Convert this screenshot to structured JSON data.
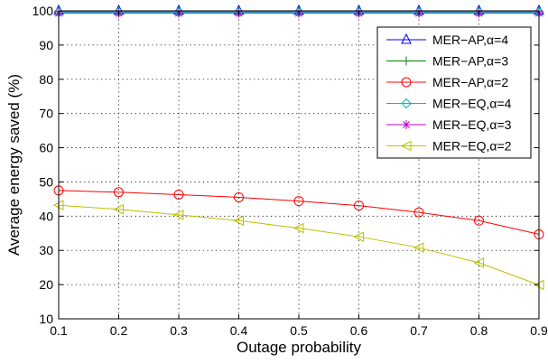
{
  "chart_data": {
    "type": "line",
    "title": "",
    "xlabel": "Outage probability",
    "ylabel": "Average energy saved (%)",
    "xlim": [
      0.1,
      0.9
    ],
    "ylim": [
      10,
      100
    ],
    "xticks": [
      0.1,
      0.2,
      0.3,
      0.4,
      0.5,
      0.6,
      0.7,
      0.8,
      0.9
    ],
    "yticks": [
      10,
      20,
      30,
      40,
      50,
      60,
      70,
      80,
      90,
      100
    ],
    "grid": true,
    "legend_position": "top-right",
    "x": [
      0.1,
      0.2,
      0.3,
      0.4,
      0.5,
      0.6,
      0.7,
      0.8,
      0.9
    ],
    "series": [
      {
        "name": "MER−AP,α=4",
        "color": "#0000ff",
        "marker": "triangle-up",
        "values": [
          100,
          100,
          100,
          100,
          100,
          100,
          100,
          100,
          100
        ]
      },
      {
        "name": "MER−AP,α=3",
        "color": "#008000",
        "marker": "plus",
        "values": [
          99.9,
          99.9,
          99.9,
          99.9,
          99.9,
          99.9,
          99.9,
          99.9,
          99.9
        ]
      },
      {
        "name": "MER−AP,α=2",
        "color": "#ff0000",
        "marker": "circle",
        "values": [
          47.5,
          47.0,
          46.3,
          45.5,
          44.4,
          43.1,
          41.1,
          38.7,
          34.7
        ]
      },
      {
        "name": "MER−EQ,α=4",
        "color": "#00bfbf",
        "marker": "diamond",
        "values": [
          99.6,
          99.6,
          99.6,
          99.6,
          99.6,
          99.6,
          99.6,
          99.6,
          99.6
        ]
      },
      {
        "name": "MER−EQ,α=3",
        "color": "#bf00bf",
        "marker": "star",
        "values": [
          99.3,
          99.3,
          99.3,
          99.3,
          99.3,
          99.3,
          99.3,
          99.3,
          99.3
        ]
      },
      {
        "name": "MER−EQ,α=2",
        "color": "#bfbf00",
        "marker": "triangle-left",
        "values": [
          43.2,
          42.0,
          40.4,
          38.7,
          36.5,
          34.0,
          30.8,
          26.4,
          19.9
        ]
      }
    ]
  }
}
